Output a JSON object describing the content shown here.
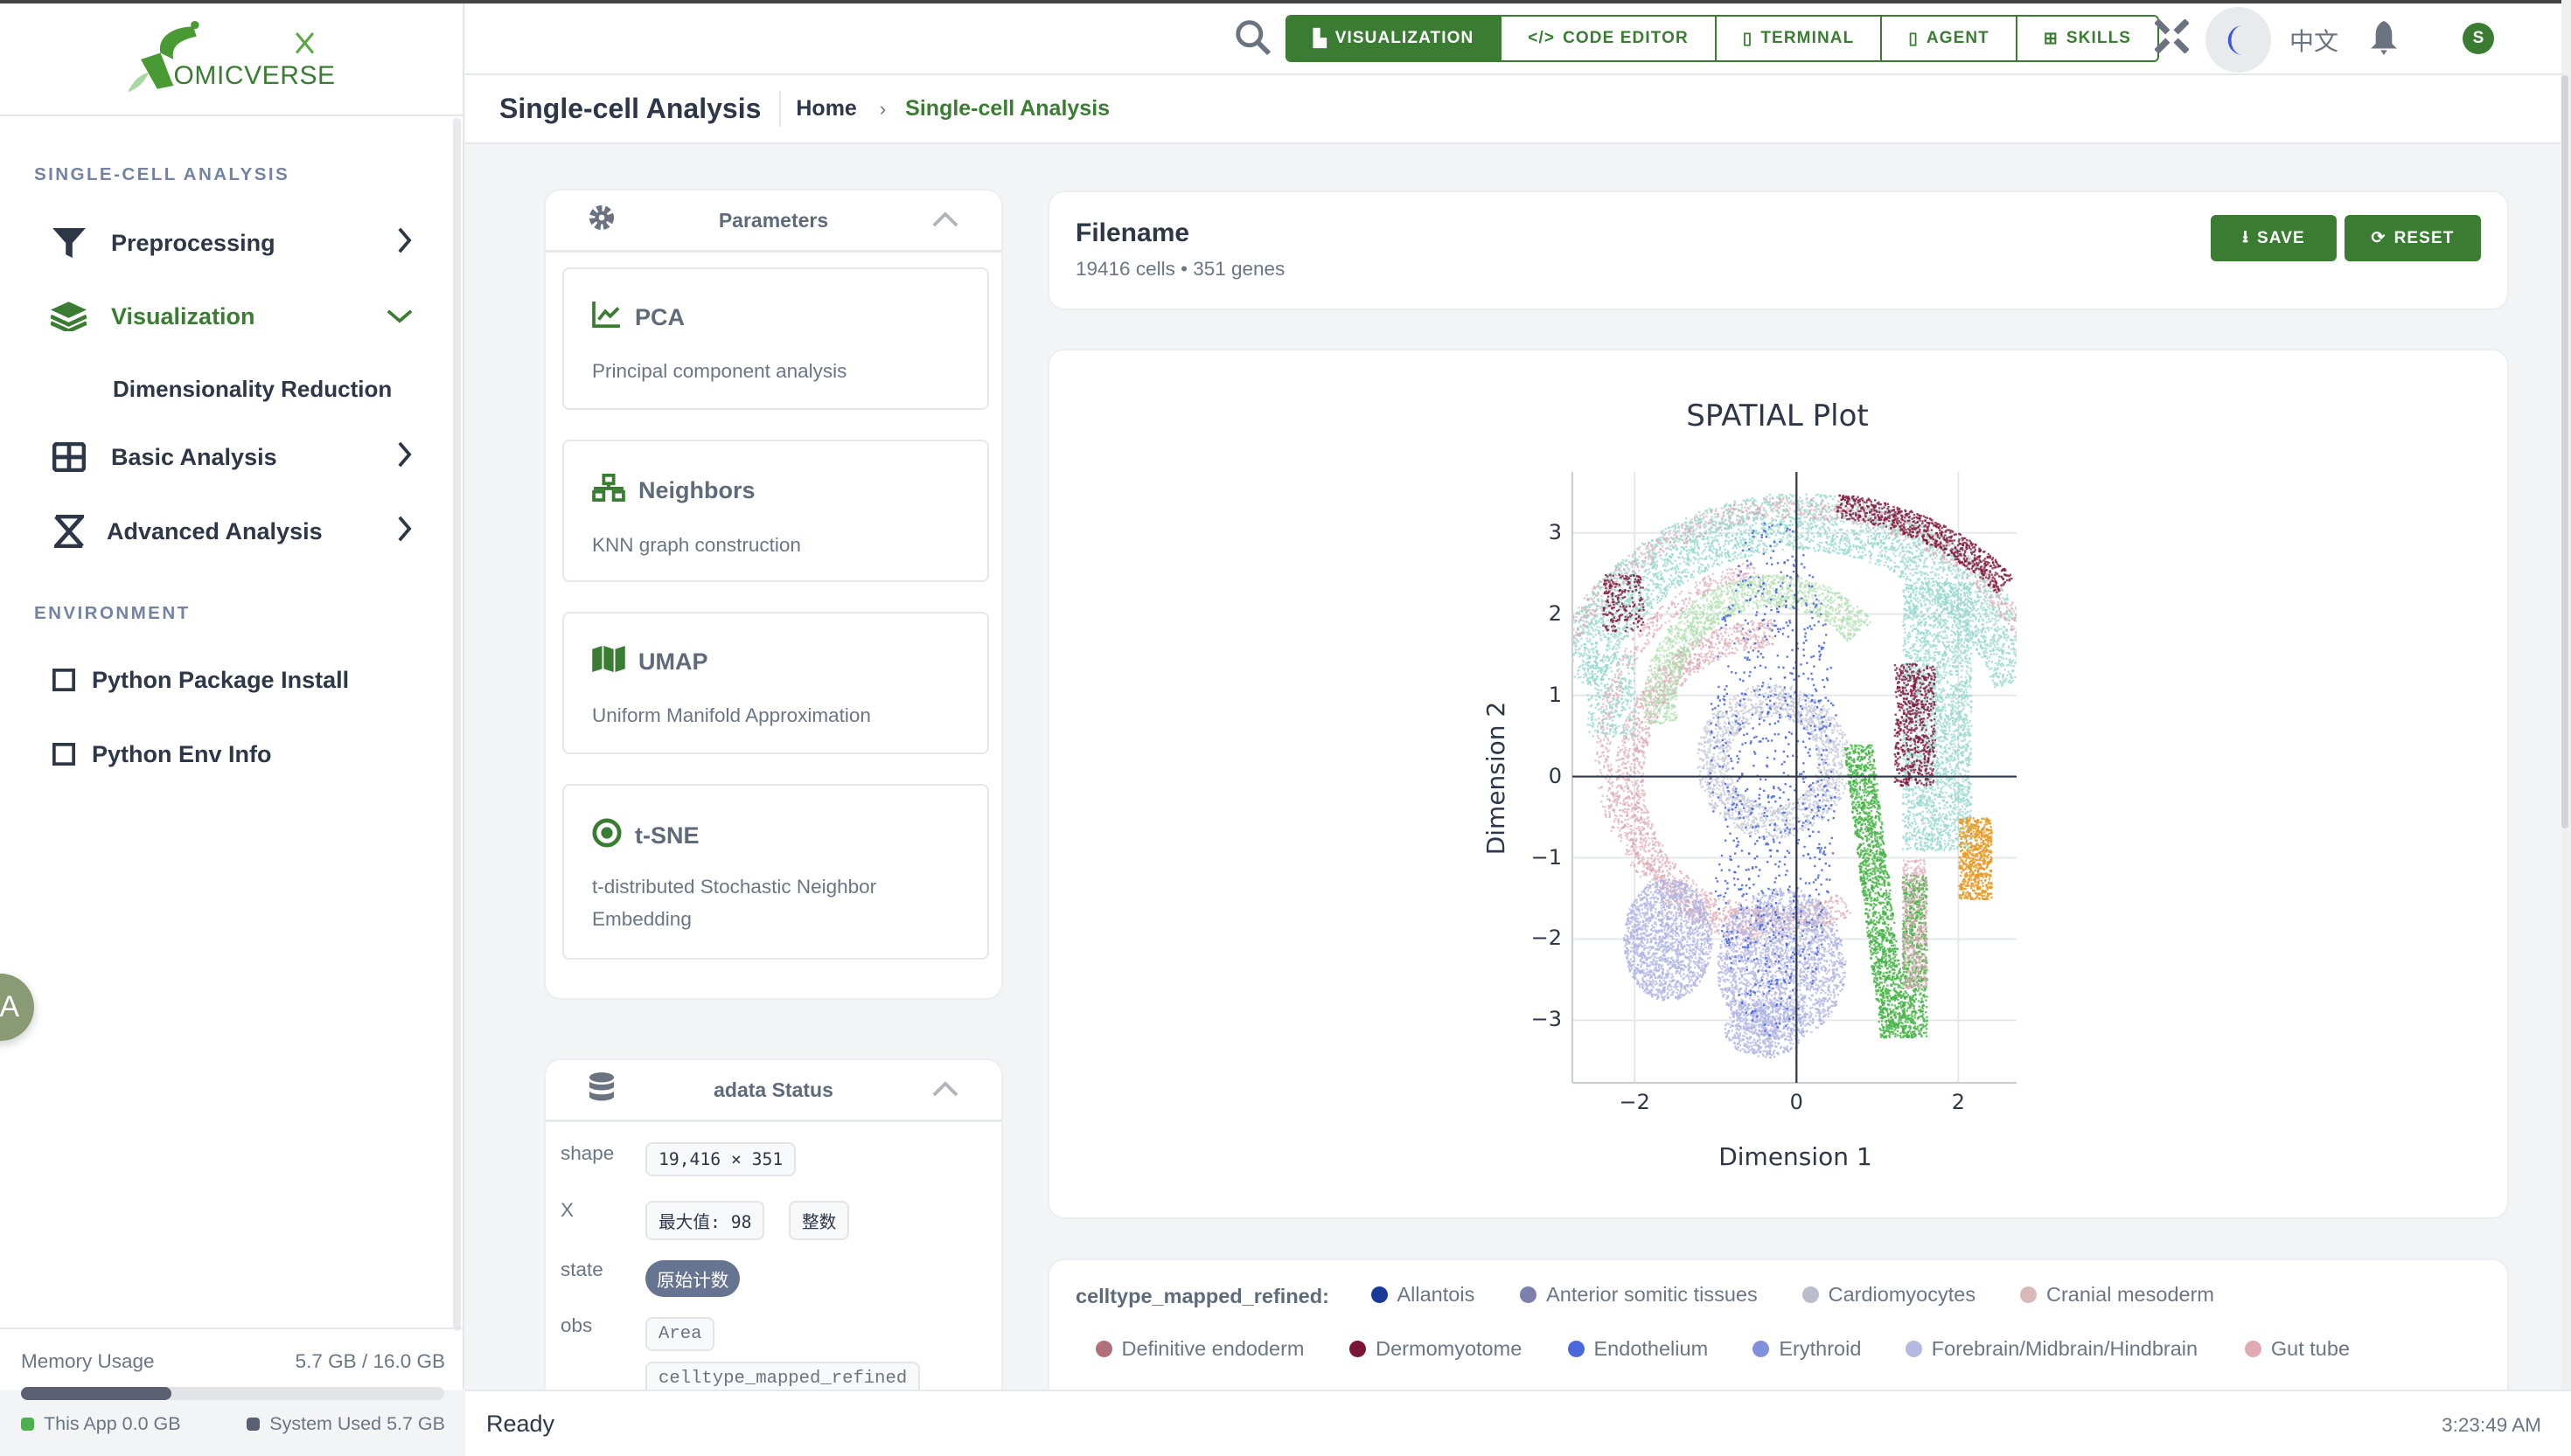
{
  "logo": {
    "text": "OMICVERSE"
  },
  "sidebar": {
    "section1": "SINGLE-CELL ANALYSIS",
    "items": [
      {
        "label": "Preprocessing"
      },
      {
        "label": "Visualization"
      },
      {
        "label": "Dimensionality Reduction"
      },
      {
        "label": "Basic Analysis"
      },
      {
        "label": "Advanced Analysis"
      }
    ],
    "section2": "ENVIRONMENT",
    "env_items": [
      {
        "label": "Python Package Install"
      },
      {
        "label": "Python Env Info"
      }
    ],
    "memory": {
      "label": "Memory Usage",
      "value": "5.7 GB / 16.0 GB",
      "used_fraction": 0.356,
      "this_app": "This App 0.0 GB",
      "system": "System Used 5.7 GB"
    },
    "float_button": "A"
  },
  "topbar": {
    "tabs": [
      "VISUALIZATION",
      "CODE EDITOR",
      "TERMINAL",
      "AGENT",
      "SKILLS"
    ],
    "lang": "中文",
    "avatar": "S"
  },
  "breadcrumb": {
    "title": "Single-cell Analysis",
    "home": "Home",
    "current": "Single-cell Analysis"
  },
  "parameters": {
    "title": "Parameters",
    "methods": [
      {
        "name": "PCA",
        "desc": "Principal component analysis"
      },
      {
        "name": "Neighbors",
        "desc": "KNN graph construction"
      },
      {
        "name": "UMAP",
        "desc": "Uniform Manifold Approximation"
      },
      {
        "name": "t-SNE",
        "desc": "t-distributed Stochastic Neighbor Embedding"
      }
    ]
  },
  "adata": {
    "title": "adata Status",
    "shape_label": "shape",
    "shape": "19,416 × 351",
    "x_label": "X",
    "x_max": "最大值: 98",
    "x_type": "整数",
    "state_label": "state",
    "state": "原始计数",
    "obs_label": "obs",
    "obs": [
      "Area",
      "celltype_mapped_refined"
    ]
  },
  "file": {
    "title": "Filename",
    "meta": "19416 cells • 351 genes",
    "save": "SAVE",
    "reset": "RESET"
  },
  "chart_data": {
    "type": "scatter",
    "title": "SPATIAL Plot",
    "xlabel": "Dimension 1",
    "ylabel": "Dimension 2",
    "xlim": [
      -2.77,
      2.72
    ],
    "ylim": [
      -3.77,
      3.75
    ],
    "xticks": [
      "−2",
      "0",
      "2"
    ],
    "xtick_values": [
      -2,
      0,
      2
    ],
    "yticks": [
      "3",
      "2",
      "1",
      "0",
      "−1",
      "−2",
      "−3"
    ],
    "ytick_values": [
      3,
      2,
      1,
      0,
      -1,
      -2,
      -3
    ],
    "grid": true
  },
  "legend": {
    "title": "celltype_mapped_refined:",
    "items": [
      {
        "label": "Allantois",
        "color": "#1a3a9a"
      },
      {
        "label": "Anterior somitic tissues",
        "color": "#7b80ad"
      },
      {
        "label": "Cardiomyocytes",
        "color": "#bcbccc"
      },
      {
        "label": "Cranial mesoderm",
        "color": "#d8b8b8"
      },
      {
        "label": "Definitive endoderm",
        "color": "#b07078"
      },
      {
        "label": "Dermomyotome",
        "color": "#7a1535"
      },
      {
        "label": "Endothelium",
        "color": "#4a68dd"
      },
      {
        "label": "Erythroid",
        "color": "#8090dd"
      },
      {
        "label": "Forebrain/Midbrain/Hindbrain",
        "color": "#b5b8e0"
      },
      {
        "label": "Gut tube",
        "color": "#e0aab2"
      }
    ]
  },
  "statusbar": {
    "text": "Ready",
    "time": "3:23:49 AM"
  },
  "colors": {
    "accent": "#3a7d32"
  }
}
